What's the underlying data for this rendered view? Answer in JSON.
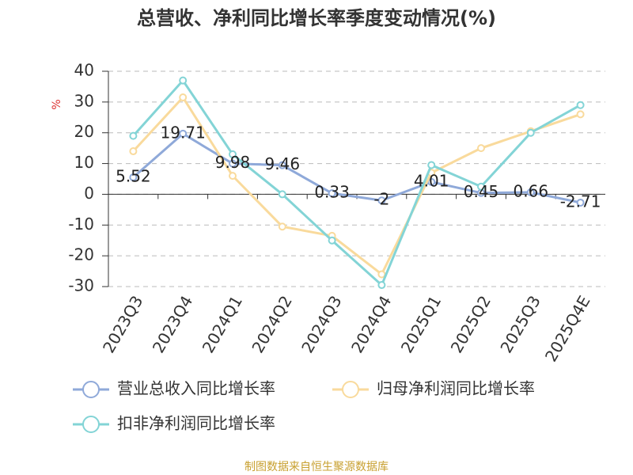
{
  "chart_data": {
    "type": "line",
    "title": "总营收、净利同比增长率季度变动情况(%)",
    "y_label": "%",
    "categories": [
      "2023Q3",
      "2023Q4",
      "2024Q1",
      "2024Q2",
      "2024Q3",
      "2024Q4",
      "2025Q1",
      "2025Q2",
      "2025Q3",
      "2025Q4E"
    ],
    "series": [
      {
        "name": "营业总收入同比增长率",
        "color": "#8fa9d9",
        "values": [
          5.52,
          19.71,
          9.98,
          9.46,
          0.33,
          -2,
          4.01,
          0.45,
          0.66,
          -2.71
        ]
      },
      {
        "name": "归母净利润同比增长率",
        "color": "#f9da9c",
        "values": [
          14,
          31.5,
          6,
          -10.5,
          -13.5,
          -26,
          7,
          15,
          20.5,
          26
        ]
      },
      {
        "name": "扣非净利润同比增长率",
        "color": "#83d4d6",
        "values": [
          19,
          37,
          13,
          0,
          -15,
          -29.5,
          9.5,
          2.5,
          20,
          29
        ]
      }
    ],
    "ylim": [
      -30,
      40
    ],
    "yticks": [
      -30,
      -20,
      -10,
      0,
      10,
      20,
      30,
      40
    ],
    "grid": true,
    "source": "制图数据来自恒生聚源数据库"
  }
}
